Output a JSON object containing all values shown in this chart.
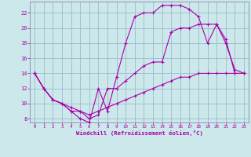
{
  "xlabel": "Windchill (Refroidissement éolien,°C)",
  "bg_color": "#cce8ea",
  "grid_color": "#99bbcc",
  "line_color": "#aa00aa",
  "spine_color": "#8888aa",
  "xlim": [
    -0.5,
    23.5
  ],
  "ylim": [
    7.5,
    23.5
  ],
  "xticks": [
    0,
    1,
    2,
    3,
    4,
    5,
    6,
    7,
    8,
    9,
    10,
    11,
    12,
    13,
    14,
    15,
    16,
    17,
    18,
    19,
    20,
    21,
    22,
    23
  ],
  "yticks": [
    8,
    10,
    12,
    14,
    16,
    18,
    20,
    22
  ],
  "line1_x": [
    0,
    1,
    2,
    3,
    4,
    5,
    6,
    7,
    8,
    9,
    10,
    11,
    12,
    13,
    14,
    15,
    16,
    17,
    18,
    19,
    20,
    21,
    22,
    23
  ],
  "line1_y": [
    14,
    12,
    10.5,
    10,
    9.5,
    9,
    8.5,
    9,
    9.5,
    10,
    10.5,
    11,
    11.5,
    12,
    12.5,
    13,
    13.5,
    13.5,
    14,
    14,
    14,
    14,
    14,
    14
  ],
  "line2_x": [
    0,
    1,
    2,
    3,
    4,
    5,
    6,
    7,
    8,
    9,
    10,
    11,
    12,
    13,
    14,
    15,
    16,
    17,
    18,
    19,
    20,
    21,
    22,
    23
  ],
  "line2_y": [
    14,
    12,
    10.5,
    10,
    9,
    9,
    8,
    8.5,
    12,
    12,
    13,
    14,
    15,
    15.5,
    15.5,
    19.5,
    20,
    20,
    20.5,
    20.5,
    20.5,
    18,
    14.5,
    14
  ],
  "line3_x": [
    0,
    1,
    2,
    3,
    4,
    5,
    6,
    7,
    8,
    9,
    10,
    11,
    12,
    13,
    14,
    15,
    16,
    17,
    18,
    19,
    20,
    21,
    22,
    23
  ],
  "line3_y": [
    14,
    12,
    10.5,
    10,
    9,
    8,
    7.5,
    12,
    9,
    13.5,
    18,
    21.5,
    22,
    22,
    23,
    23,
    23,
    22.5,
    21.5,
    18,
    20.5,
    18.5,
    14,
    14
  ]
}
